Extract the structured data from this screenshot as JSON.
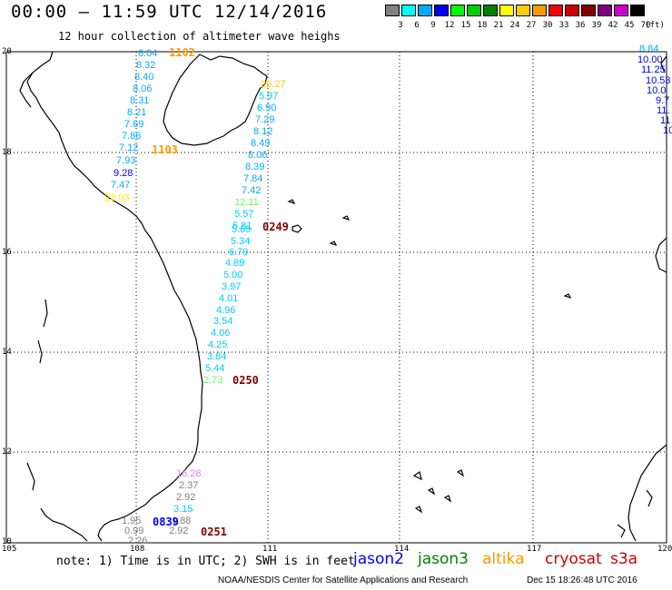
{
  "header": {
    "title": "00:00 – 11:59 UTC 12/14/2016",
    "subtitle": "12 hour collection of altimeter wave heighs"
  },
  "color_scale": {
    "swatches": [
      {
        "color": "#808080",
        "label": "3"
      },
      {
        "color": "#00ffff",
        "label": "6"
      },
      {
        "color": "#00aaff",
        "label": "9"
      },
      {
        "color": "#0000ff",
        "label": "12"
      },
      {
        "color": "#00ff00",
        "label": "15"
      },
      {
        "color": "#00cc00",
        "label": "18"
      },
      {
        "color": "#008000",
        "label": "21"
      },
      {
        "color": "#ffff00",
        "label": "24"
      },
      {
        "color": "#ffcc00",
        "label": "27"
      },
      {
        "color": "#ff9900",
        "label": "30"
      },
      {
        "color": "#ff0000",
        "label": "33"
      },
      {
        "color": "#cc0000",
        "label": "36"
      },
      {
        "color": "#800000",
        "label": "39"
      },
      {
        "color": "#800080",
        "label": "42"
      },
      {
        "color": "#cc00cc",
        "label": "45"
      },
      {
        "color": "#000000",
        "label": "70"
      }
    ],
    "unit": "(ft)"
  },
  "axes": {
    "lat_labels": [
      "20",
      "18",
      "16",
      "14",
      "12",
      "10"
    ],
    "lon_labels": [
      "105",
      "108",
      "111",
      "114",
      "117",
      "120"
    ]
  },
  "passes": [
    {
      "label": "1102",
      "color": "#ff9900"
    },
    {
      "label": "1103",
      "color": "#ff9900"
    },
    {
      "label": "0249",
      "color": "#800000"
    },
    {
      "label": "0250",
      "color": "#800000"
    },
    {
      "label": "0251",
      "color": "#800000"
    },
    {
      "label": "0839",
      "color": "#0000ff"
    }
  ],
  "wave_heights": [
    {
      "text": "8.04",
      "color": "#00aaff"
    },
    {
      "text": "8.32",
      "color": "#00aaff"
    },
    {
      "text": "8.40",
      "color": "#00aaff"
    },
    {
      "text": "8.06",
      "color": "#00aaff"
    },
    {
      "text": "8.31",
      "color": "#00aaff"
    },
    {
      "text": "8.21",
      "color": "#00aaff"
    },
    {
      "text": "7.69",
      "color": "#00aaff"
    },
    {
      "text": "7.86",
      "color": "#00aaff"
    },
    {
      "text": "7.12",
      "color": "#00aaff"
    },
    {
      "text": "7.93",
      "color": "#00aaff"
    },
    {
      "text": "9.28",
      "color": "#0000ff"
    },
    {
      "text": "7.47",
      "color": "#00aaff"
    },
    {
      "text": "23.03",
      "color": "#ffee00"
    },
    {
      "text": "26.27",
      "color": "#ffcc00"
    },
    {
      "text": "5.97",
      "color": "#00ccff"
    },
    {
      "text": "6.90",
      "color": "#00aaff"
    },
    {
      "text": "7.29",
      "color": "#00aaff"
    },
    {
      "text": "8.12",
      "color": "#00aaff"
    },
    {
      "text": "8.49",
      "color": "#00aaff"
    },
    {
      "text": "8.06",
      "color": "#00aaff"
    },
    {
      "text": "8.39",
      "color": "#00aaff"
    },
    {
      "text": "7.84",
      "color": "#00aaff"
    },
    {
      "text": "7.42",
      "color": "#00aaff"
    },
    {
      "text": "12.11",
      "color": "#66ff66"
    },
    {
      "text": "5.57",
      "color": "#00ccff"
    },
    {
      "text": "5.81",
      "color": "#00ccff"
    },
    {
      "text": "5.69",
      "color": "#00ccff"
    },
    {
      "text": "5.34",
      "color": "#00ccff"
    },
    {
      "text": "6.79",
      "color": "#00ccff"
    },
    {
      "text": "4.89",
      "color": "#00ccff"
    },
    {
      "text": "5.00",
      "color": "#00ccff"
    },
    {
      "text": "3.97",
      "color": "#00ccff"
    },
    {
      "text": "4.01",
      "color": "#00ccff"
    },
    {
      "text": "4.96",
      "color": "#00ccff"
    },
    {
      "text": "3.54",
      "color": "#00ccff"
    },
    {
      "text": "4.06",
      "color": "#00ccff"
    },
    {
      "text": "4.25",
      "color": "#00ccff"
    },
    {
      "text": "3.84",
      "color": "#00ccff"
    },
    {
      "text": "5.44",
      "color": "#00ccff"
    },
    {
      "text": "2.73",
      "color": "#66ff66"
    },
    {
      "text": "16.28",
      "color": "#dd88dd"
    },
    {
      "text": "2.37",
      "color": "#808080"
    },
    {
      "text": "2.92",
      "color": "#808080"
    },
    {
      "text": "3.15",
      "color": "#00ccff"
    },
    {
      "text": "1.88",
      "color": "#808080"
    },
    {
      "text": "1.95",
      "color": "#808080"
    },
    {
      "text": "0.99",
      "color": "#808080"
    },
    {
      "text": "2.92",
      "color": "#808080"
    },
    {
      "text": "2.26",
      "color": "#808080"
    },
    {
      "text": "8.84",
      "color": "#00aaff"
    },
    {
      "text": "10.00",
      "color": "#0000cc"
    },
    {
      "text": "11.25",
      "color": "#0000cc"
    },
    {
      "text": "10.53",
      "color": "#0000cc"
    },
    {
      "text": "10.0",
      "color": "#0000cc"
    },
    {
      "text": "9.7",
      "color": "#0000cc"
    },
    {
      "text": "11.",
      "color": "#0000cc"
    },
    {
      "text": "11",
      "color": "#0000cc"
    },
    {
      "text": "10",
      "color": "#0000cc"
    }
  ],
  "footer": {
    "note": "note:  1)  Time is in UTC;  2)  SWH is in feet",
    "legend": [
      {
        "label": "jason2",
        "color": "#0000ff"
      },
      {
        "label": "jason3",
        "color": "#008000"
      },
      {
        "label": "altika",
        "color": "#ff9900"
      },
      {
        "label": "cryosat",
        "color": "#cc0000"
      },
      {
        "label": "s3a",
        "color": "#cc0000"
      }
    ],
    "credit": "NOAA/NESDIS Center for Satellite Applications and Research",
    "timestamp": "Dec 15 18:26:48 UTC 2016"
  }
}
